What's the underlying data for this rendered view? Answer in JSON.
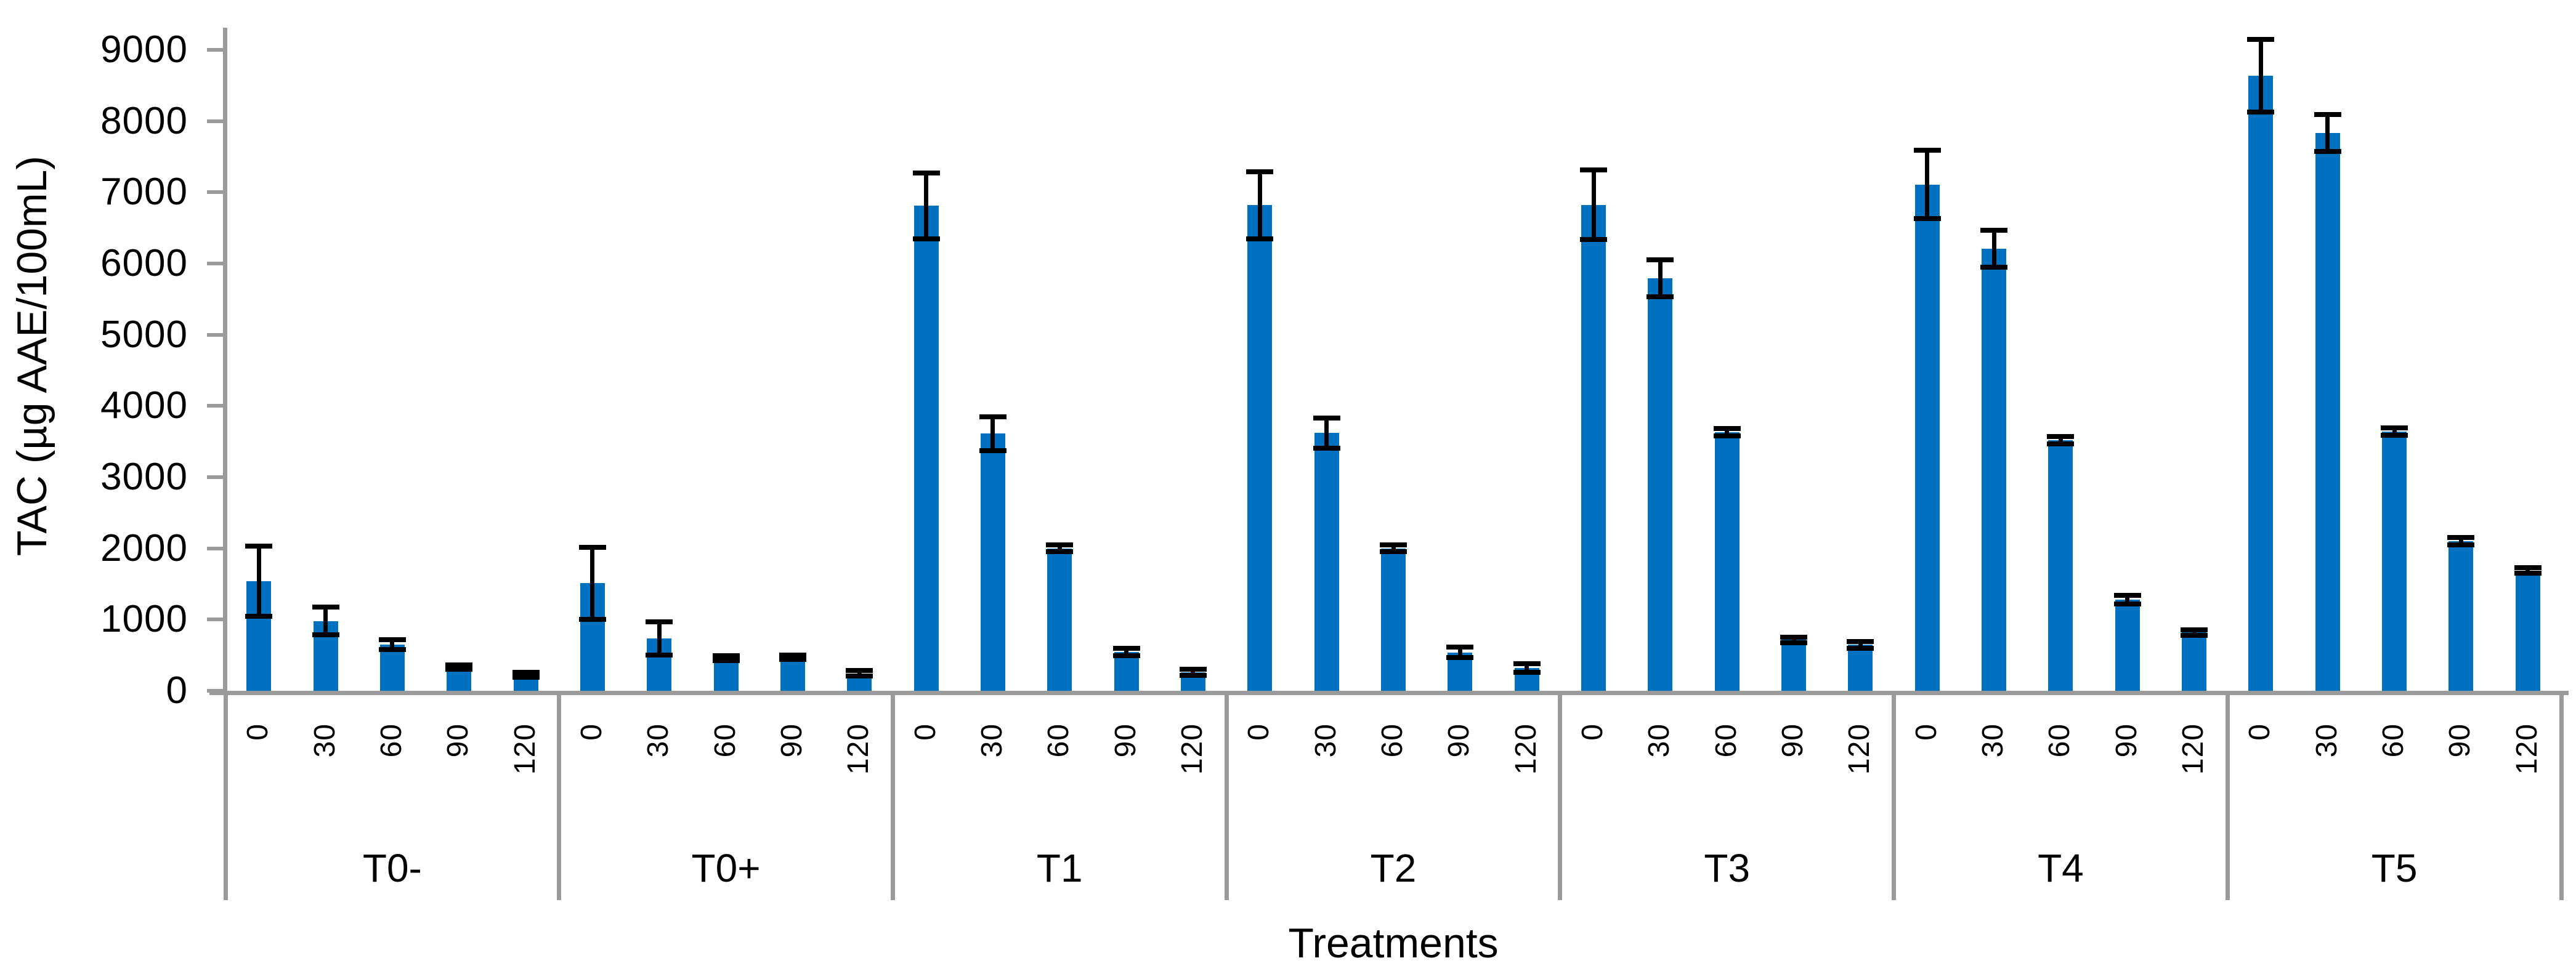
{
  "chart_data": {
    "type": "bar",
    "title": "",
    "xlabel": "Treatments",
    "ylabel": "TAC (µg AAE/100mL)",
    "ylim": [
      0,
      9000
    ],
    "ytick_interval": 1000,
    "ytick_labels": [
      "0",
      "1000",
      "2000",
      "3000",
      "4000",
      "5000",
      "6000",
      "7000",
      "8000",
      "9000"
    ],
    "grid": "off",
    "legend": "none",
    "bar_color": "#0070C0",
    "error_bar_color": "#000000",
    "axis_color": "#9a9a9a",
    "time_points": [
      "0",
      "30",
      "60",
      "90",
      "120"
    ],
    "groups": [
      {
        "label": "T0-",
        "values": [
          1540,
          980,
          650,
          330,
          225
        ],
        "errors": [
          495,
          195,
          70,
          30,
          35
        ]
      },
      {
        "label": "T0+",
        "values": [
          1510,
          735,
          455,
          470,
          245
        ],
        "errors": [
          505,
          235,
          35,
          30,
          40
        ]
      },
      {
        "label": "T1",
        "values": [
          6810,
          3610,
          2000,
          545,
          260
        ],
        "errors": [
          460,
          235,
          50,
          50,
          45
        ]
      },
      {
        "label": "T2",
        "values": [
          6820,
          3620,
          2000,
          540,
          320
        ],
        "errors": [
          470,
          210,
          50,
          70,
          60
        ]
      },
      {
        "label": "T3",
        "values": [
          6825,
          5790,
          3630,
          715,
          645
        ],
        "errors": [
          490,
          260,
          50,
          40,
          50
        ]
      },
      {
        "label": "T4",
        "values": [
          7110,
          6210,
          3520,
          1280,
          820
        ],
        "errors": [
          480,
          260,
          50,
          60,
          40
        ]
      },
      {
        "label": "T5",
        "values": [
          8640,
          7830,
          3640,
          2100,
          1690
        ],
        "errors": [
          510,
          260,
          50,
          50,
          40
        ]
      }
    ]
  }
}
